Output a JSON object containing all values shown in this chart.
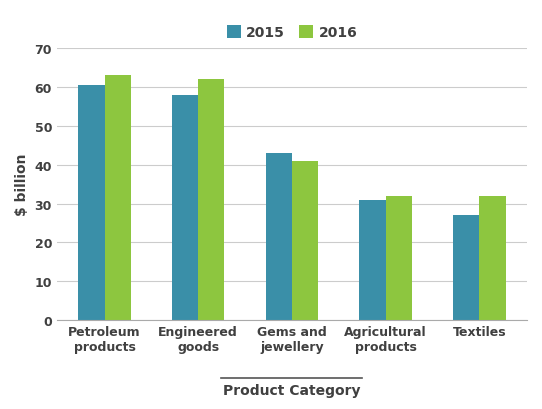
{
  "categories": [
    "Petroleum\nproducts",
    "Engineered\ngoods",
    "Gems and\njewellery",
    "Agricultural\nproducts",
    "Textiles"
  ],
  "values_2015": [
    60.5,
    58,
    43,
    31,
    27
  ],
  "values_2016": [
    63,
    62,
    41,
    32,
    32
  ],
  "color_2015": "#3a8fa8",
  "color_2016": "#8dc63f",
  "ylabel": "$ billion",
  "xlabel": "Product Category",
  "legend_labels": [
    "2015",
    "2016"
  ],
  "ylim": [
    0,
    70
  ],
  "yticks": [
    0,
    10,
    20,
    30,
    40,
    50,
    60,
    70
  ],
  "bar_width": 0.28,
  "tick_label_color": "#404040",
  "xlabel_color": "#404040",
  "ylabel_color": "#404040",
  "legend_label_color": "#404040",
  "grid_color": "#cccccc",
  "spine_color": "#aaaaaa"
}
